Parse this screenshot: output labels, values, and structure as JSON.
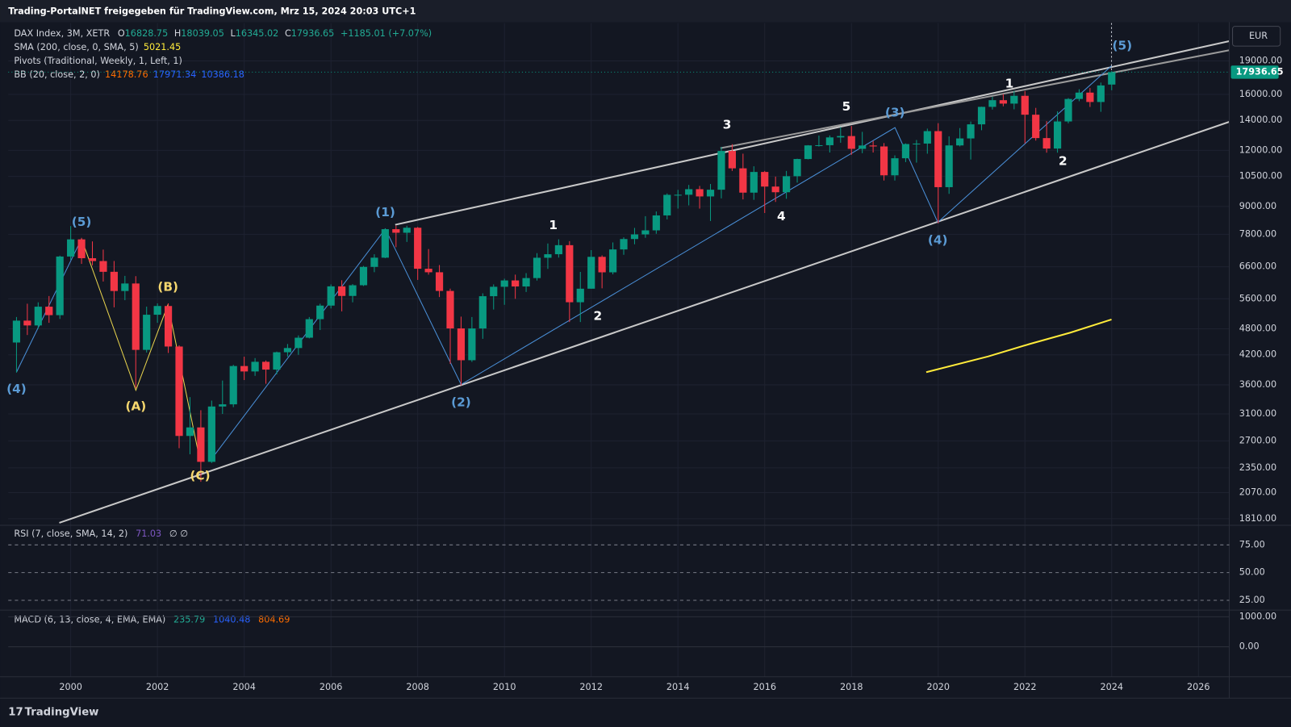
{
  "header": {
    "title": "Trading-PortalNET freigegeben für TradingView.com, Mrz 15, 2024 20:03 UTC+1",
    "currency": "EUR",
    "brand": "TradingView"
  },
  "chart_data": {
    "type": "candlestick",
    "symbol": "DAX Index, 3M, XETR",
    "ohlc_labels": [
      "O",
      "H",
      "L",
      "C"
    ],
    "change": "+1185.01 (+7.07%)",
    "indicators": [
      {
        "name": "SMA (200, close, 0, SMA, 5)",
        "values": [
          5021.45
        ],
        "colors": [
          "#ffeb3b"
        ]
      },
      {
        "name": "Pivots (Traditional, Weekly, 1, Left, 1)",
        "values": [],
        "colors": []
      },
      {
        "name": "BB (20, close, 2, 0)",
        "values": [
          14178.76,
          17971.34,
          10386.18
        ],
        "colors": [
          "#ff6d00",
          "#2962ff",
          "#2962ff"
        ]
      }
    ],
    "colors": {
      "up": "#089981",
      "down": "#f23645"
    },
    "log_scale": true,
    "grid": true,
    "xlim": [
      1998.56,
      2026.71
    ],
    "xticks": [
      2000,
      2002,
      2004,
      2006,
      2008,
      2010,
      2012,
      2014,
      2016,
      2018,
      2020,
      2022,
      2024,
      2026
    ],
    "ylim": [
      1750,
      23080
    ],
    "yticks": [
      {
        "value": 19000,
        "label": "19000.00"
      },
      {
        "value": 16000,
        "label": "16000.00"
      },
      {
        "value": 14000,
        "label": "14000.00"
      },
      {
        "value": 12000,
        "label": "12000.00"
      },
      {
        "value": 10500,
        "label": "10500.00"
      },
      {
        "value": 9000,
        "label": "9000.00"
      },
      {
        "value": 7800,
        "label": "7800.00"
      },
      {
        "value": 6600,
        "label": "6600.00"
      },
      {
        "value": 5600,
        "label": "5600.00"
      },
      {
        "value": 4800,
        "label": "4800.00"
      },
      {
        "value": 4200,
        "label": "4200.00"
      },
      {
        "value": 3600,
        "label": "3600.00"
      },
      {
        "value": 3100,
        "label": "3100.00"
      },
      {
        "value": 2700,
        "label": "2700.00"
      },
      {
        "value": 2350,
        "label": "2350.00"
      },
      {
        "value": 2070,
        "label": "2070.00"
      },
      {
        "value": 1810,
        "label": "1810.00"
      }
    ],
    "x": [
      1998.75,
      1999,
      1999.25,
      1999.5,
      1999.75,
      2000,
      2000.25,
      2000.5,
      2000.75,
      2001,
      2001.25,
      2001.5,
      2001.75,
      2002,
      2002.25,
      2002.5,
      2002.75,
      2003,
      2003.25,
      2003.5,
      2003.75,
      2004,
      2004.25,
      2004.5,
      2004.75,
      2005,
      2005.25,
      2005.5,
      2005.75,
      2006,
      2006.25,
      2006.5,
      2006.75,
      2007,
      2007.25,
      2007.5,
      2007.75,
      2008,
      2008.25,
      2008.5,
      2008.75,
      2009,
      2009.25,
      2009.5,
      2009.75,
      2010,
      2010.25,
      2010.5,
      2010.75,
      2011,
      2011.25,
      2011.5,
      2011.75,
      2012,
      2012.25,
      2012.5,
      2012.75,
      2013,
      2013.25,
      2013.5,
      2013.75,
      2014,
      2014.25,
      2014.5,
      2014.75,
      2015,
      2015.25,
      2015.5,
      2015.75,
      2016,
      2016.25,
      2016.5,
      2016.75,
      2017,
      2017.25,
      2017.5,
      2017.75,
      2018,
      2018.25,
      2018.5,
      2018.75,
      2019,
      2019.25,
      2019.5,
      2019.75,
      2020,
      2020.25,
      2020.5,
      2020.75,
      2021,
      2021.25,
      2021.5,
      2021.75,
      2022,
      2022.25,
      2022.5,
      2022.75,
      2023,
      2023.25,
      2023.5,
      2023.75,
      2024
    ],
    "open": [
      4474,
      5006,
      4884,
      5378,
      5149,
      6958,
      7599,
      6898,
      6798,
      6433,
      5829,
      6058,
      4308,
      5160,
      5397,
      4383,
      2769,
      2893,
      2424,
      3221,
      3257,
      3965,
      3856,
      4052,
      3893,
      4256,
      4349,
      4586,
      5044,
      5408,
      5970,
      5683,
      6004,
      6597,
      6917,
      8007,
      7862,
      8067,
      6535,
      6418,
      5831,
      4810,
      4085,
      4809,
      5675,
      5957,
      6154,
      5966,
      6229,
      6914,
      7041,
      7376,
      5502,
      5898,
      6947,
      6416,
      7216,
      7612,
      7795,
      7959,
      8594,
      9552,
      9556,
      9833,
      9474,
      9806,
      11966,
      10945,
      9660,
      10743,
      9966,
      9680,
      10511,
      11481,
      12313,
      12325,
      12829,
      12918,
      12097,
      12306,
      12247,
      10559,
      11526,
      12399,
      12428,
      13249,
      9936,
      12311,
      12761,
      13719,
      15008,
      15531,
      15260,
      15885,
      14415,
      12784,
      12114,
      13924,
      15629,
      16148,
      15387,
      16828.75
    ],
    "high": [
      5100,
      5460,
      5500,
      5680,
      6990,
      8136,
      7660,
      7520,
      7210,
      6800,
      6300,
      6290,
      5380,
      5470,
      5470,
      4410,
      3380,
      3160,
      3320,
      3680,
      3990,
      4160,
      4130,
      4080,
      4270,
      4440,
      4640,
      5100,
      5460,
      6030,
      6160,
      6040,
      6630,
      7040,
      8040,
      8150,
      8150,
      8100,
      7230,
      6660,
      5900,
      5110,
      5100,
      5760,
      6030,
      6210,
      6340,
      6390,
      7080,
      7440,
      7600,
      7530,
      6430,
      7190,
      7000,
      7480,
      7680,
      8060,
      8560,
      8770,
      9620,
      9800,
      10050,
      10000,
      10100,
      12220,
      12390,
      11800,
      11060,
      10800,
      10490,
      10800,
      11500,
      12330,
      12950,
      12960,
      13530,
      13600,
      13200,
      12600,
      12460,
      11700,
      12440,
      12660,
      13420,
      13800,
      12900,
      13460,
      13920,
      15020,
      15800,
      16030,
      16290,
      16280,
      14930,
      13950,
      14670,
      15700,
      16430,
      16530,
      17000,
      18039.05
    ],
    "low": [
      3833,
      4650,
      4800,
      4950,
      5050,
      6840,
      6700,
      6650,
      6120,
      5360,
      5560,
      3540,
      4250,
      4950,
      4240,
      2600,
      2520,
      2188,
      2410,
      3100,
      3210,
      3690,
      3770,
      3620,
      3800,
      4160,
      4200,
      4570,
      4770,
      5330,
      5250,
      5500,
      5980,
      6420,
      6900,
      7300,
      7500,
      6170,
      6340,
      5650,
      4010,
      3590,
      4050,
      4560,
      5300,
      5430,
      5600,
      5800,
      6150,
      6530,
      6920,
      4970,
      4970,
      5900,
      5910,
      6350,
      7020,
      7410,
      7660,
      7820,
      8420,
      8900,
      9050,
      8900,
      8350,
      9380,
      10800,
      9330,
      9310,
      8700,
      9210,
      9360,
      10170,
      11460,
      12240,
      11870,
      12480,
      11730,
      11830,
      11870,
      10280,
      10280,
      11300,
      11270,
      11800,
      8250,
      9600,
      12250,
      11450,
      13310,
      14800,
      15050,
      14820,
      12440,
      12620,
      11860,
      11860,
      13790,
      15450,
      15000,
      14630,
      16345.02
    ],
    "close": [
      5006,
      4884,
      5378,
      5149,
      6958,
      7599,
      6898,
      6798,
      6433,
      5829,
      6058,
      4308,
      5160,
      5397,
      4383,
      2769,
      2893,
      2424,
      3221,
      3257,
      3965,
      3856,
      4052,
      3893,
      4256,
      4349,
      4586,
      5044,
      5408,
      5970,
      5683,
      6004,
      6597,
      6917,
      8007,
      7862,
      8067,
      6535,
      6418,
      5831,
      4810,
      4085,
      4809,
      5675,
      5957,
      6154,
      5966,
      6229,
      6914,
      7041,
      7376,
      5502,
      5898,
      6947,
      6416,
      7216,
      7612,
      7795,
      7959,
      8594,
      9552,
      9556,
      9833,
      9474,
      9806,
      11966,
      10945,
      9660,
      10743,
      9966,
      9680,
      10511,
      11481,
      12313,
      12325,
      12829,
      12918,
      12097,
      12306,
      12247,
      10559,
      11526,
      12399,
      12428,
      13249,
      9936,
      12311,
      12761,
      13719,
      15008,
      15531,
      15260,
      15885,
      14415,
      12784,
      12114,
      13924,
      15629,
      16148,
      15387,
      16752,
      17936.65
    ],
    "annotations": [
      "(5)",
      "(4)",
      "(A)",
      "(B)",
      "(C)",
      "(1)",
      "(2)",
      "1",
      "2",
      "3",
      "4",
      "5",
      "(3)",
      "(4)",
      "1",
      "2",
      "(5)"
    ],
    "rsi_pane": {
      "title": "RSI (7, close, SMA, 14, 2)",
      "value": 71.03,
      "extra": "∅ ∅",
      "ylim": [
        16.2,
        91.2
      ],
      "yticks": [
        {
          "value": 75,
          "label": "75.00"
        },
        {
          "value": 50,
          "label": "50.00"
        },
        {
          "value": 25,
          "label": "25.00"
        }
      ]
    },
    "macd_pane": {
      "title": "MACD (6, 13, close, 4, EMA, EMA)",
      "values": [
        235.79,
        1040.48,
        804.69
      ],
      "colors": [
        "#22ab94",
        "#2962ff",
        "#ff6d00"
      ],
      "ylim": [
        -1000,
        1167
      ],
      "yticks": [
        {
          "value": 1000,
          "label": "1000.00"
        },
        {
          "value": 0,
          "label": "0.00"
        }
      ]
    }
  }
}
